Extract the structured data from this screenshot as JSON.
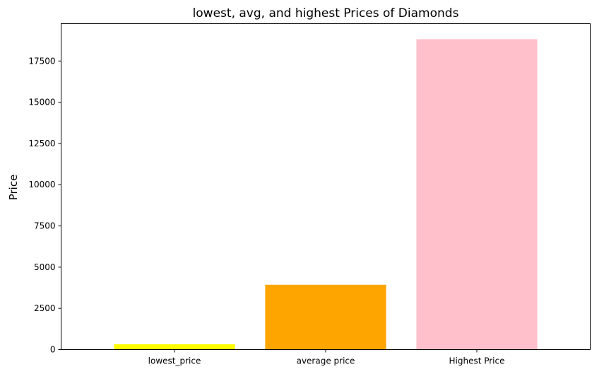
{
  "chart_data": {
    "type": "bar",
    "title": "lowest, avg, and highest Prices of Diamonds",
    "xlabel": "",
    "ylabel": "Price",
    "categories": [
      "lowest_price",
      "average price",
      "Highest Price"
    ],
    "values": [
      326,
      3933,
      18823
    ],
    "colors": [
      "#ffff00",
      "#ffa500",
      "#ffc0cb"
    ],
    "ylim": [
      0,
      19764
    ],
    "yticks": [
      0,
      2500,
      5000,
      7500,
      10000,
      12500,
      15000,
      17500
    ],
    "grid": false,
    "legend": "none"
  }
}
